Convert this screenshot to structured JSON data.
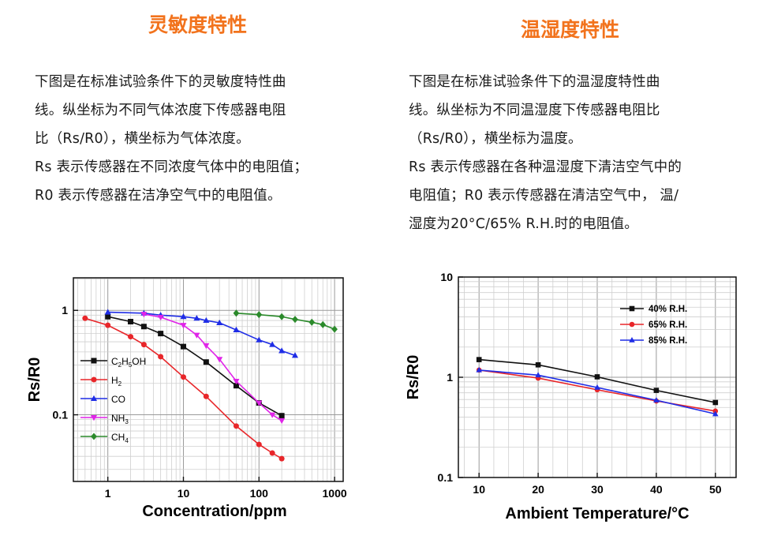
{
  "left": {
    "title": "灵敏度特性",
    "para_lines": [
      "下图是在标准试验条件下的灵敏度特性曲",
      "线。纵坐标为不同气体浓度下传感器电阻",
      "比（Rs/R0），横坐标为气体浓度。",
      "Rs  表示传感器在不同浓度气体中的电阻值；",
      "R0 表示传感器在洁净空气中的电阻值。"
    ]
  },
  "right": {
    "title": "温湿度特性",
    "para_lines": [
      "下图是在标准试验条件下的温湿度特性曲",
      "线。纵坐标为不同温湿度下传感器电阻比",
      "（Rs/R0），横坐标为温度。",
      "Rs  表示传感器在各种温湿度下清洁空气中的",
      "电阻值；R0  表示传感器在清洁空气中， 温/",
      "湿度为20°C/65% R.H.时的电阻值。"
    ]
  },
  "chart_data": [
    {
      "type": "line",
      "x_scale": "log",
      "y_scale": "log",
      "xlim": [
        0.35,
        1300
      ],
      "ylim": [
        0.023,
        2.05
      ],
      "xlabel": "Concentration/ppm",
      "ylabel": "Rs/R0",
      "x_ticks": [
        1,
        10,
        100,
        1000
      ],
      "x_tick_labels": [
        "1",
        "10",
        "100",
        "1000"
      ],
      "y_ticks": [
        0.1,
        1
      ],
      "y_tick_labels": [
        "0.1",
        "1"
      ],
      "grid": true,
      "legend_position": "left-middle",
      "series": [
        {
          "name": "C2H5OH",
          "label_base": "C",
          "label_sub1": "2",
          "label_mid": "H",
          "label_sub2": "5",
          "label_tail": "OH",
          "color": "#111111",
          "marker": "square",
          "x": [
            1,
            2,
            3,
            5,
            10,
            20,
            50,
            100,
            200
          ],
          "y": [
            0.87,
            0.78,
            0.7,
            0.6,
            0.45,
            0.32,
            0.19,
            0.13,
            0.098
          ]
        },
        {
          "name": "H2",
          "label_base": "H",
          "label_sub1": "2",
          "label_mid": "",
          "label_sub2": "",
          "label_tail": "",
          "color": "#e8262a",
          "marker": "circle",
          "x": [
            0.5,
            1,
            2,
            3,
            5,
            10,
            20,
            50,
            100,
            150,
            200
          ],
          "y": [
            0.84,
            0.72,
            0.56,
            0.47,
            0.36,
            0.23,
            0.15,
            0.078,
            0.052,
            0.043,
            0.038
          ]
        },
        {
          "name": "CO",
          "label_base": "CO",
          "label_sub1": "",
          "label_mid": "",
          "label_sub2": "",
          "label_tail": "",
          "color": "#1f2de6",
          "marker": "triangle-up",
          "x": [
            1,
            3,
            5,
            10,
            15,
            20,
            30,
            50,
            100,
            150,
            200,
            300
          ],
          "y": [
            0.96,
            0.94,
            0.9,
            0.87,
            0.84,
            0.8,
            0.76,
            0.65,
            0.52,
            0.47,
            0.41,
            0.37
          ]
        },
        {
          "name": "NH3",
          "label_base": "NH",
          "label_sub1": "3",
          "label_mid": "",
          "label_sub2": "",
          "label_tail": "",
          "color": "#e024e8",
          "marker": "triangle-down",
          "x": [
            3,
            5,
            10,
            15,
            20,
            30,
            50,
            100,
            150,
            200
          ],
          "y": [
            0.92,
            0.86,
            0.72,
            0.58,
            0.46,
            0.34,
            0.21,
            0.13,
            0.1,
            0.088
          ]
        },
        {
          "name": "CH4",
          "label_base": "CH",
          "label_sub1": "4",
          "label_mid": "",
          "label_sub2": "",
          "label_tail": "",
          "color": "#2b8a2b",
          "marker": "diamond",
          "x": [
            50,
            100,
            200,
            300,
            500,
            700,
            1000
          ],
          "y": [
            0.94,
            0.91,
            0.87,
            0.82,
            0.77,
            0.73,
            0.66
          ]
        }
      ]
    },
    {
      "type": "line",
      "x_scale": "linear",
      "y_scale": "log",
      "xlim": [
        6.5,
        53.5
      ],
      "ylim": [
        0.1,
        10
      ],
      "xlabel": "Ambient Temperature/°C",
      "ylabel": "Rs/R0",
      "x_ticks": [
        10,
        20,
        30,
        40,
        50
      ],
      "x_tick_labels": [
        "10",
        "20",
        "30",
        "40",
        "50"
      ],
      "y_ticks": [
        0.1,
        1,
        10
      ],
      "y_tick_labels": [
        "0.1",
        "1",
        "10"
      ],
      "grid": true,
      "legend_position": "top-right",
      "series": [
        {
          "name": "40% R.H.",
          "color": "#111111",
          "marker": "square",
          "x": [
            10,
            20,
            30,
            40,
            50
          ],
          "y": [
            1.5,
            1.33,
            1.01,
            0.74,
            0.56
          ]
        },
        {
          "name": "65% R.H.",
          "color": "#e8262a",
          "marker": "circle",
          "x": [
            10,
            20,
            30,
            40,
            50
          ],
          "y": [
            1.18,
            0.98,
            0.75,
            0.58,
            0.46
          ]
        },
        {
          "name": "85% R.H.",
          "color": "#1f2de6",
          "marker": "triangle-up",
          "x": [
            10,
            20,
            30,
            40,
            50
          ],
          "y": [
            1.18,
            1.05,
            0.79,
            0.59,
            0.43
          ]
        }
      ]
    }
  ]
}
